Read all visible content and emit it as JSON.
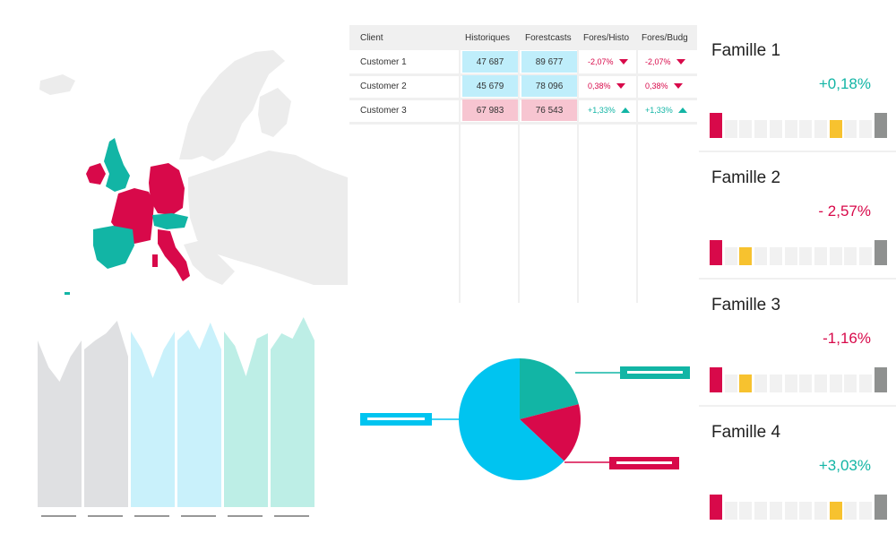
{
  "colors": {
    "red": "#d8094a",
    "teal": "#12b5a5",
    "cyan": "#00c4f0",
    "yellow": "#f7c22f",
    "grey_dark": "#8f9190",
    "grey_light": "#f1f1f1"
  },
  "table": {
    "headers": [
      "Client",
      "Historiques",
      "Forestcasts",
      "Fores/Histo",
      "Fores/Budg"
    ],
    "rows": [
      {
        "client": "Customer 1",
        "hist": "47 687",
        "fore": "89 677",
        "fh": "-2,07%",
        "fb": "-2,07%",
        "fh_dir": "down",
        "fb_dir": "down",
        "tone": "blue"
      },
      {
        "client": "Customer 2",
        "hist": "45 679",
        "fore": "78 096",
        "fh": "0,38%",
        "fb": "0,38%",
        "fh_dir": "down",
        "fb_dir": "down",
        "tone": "blue"
      },
      {
        "client": "Customer 3",
        "hist": "67 983",
        "fore": "76 543",
        "fh": "+1,33%",
        "fb": "+1,33%",
        "fh_dir": "up",
        "fb_dir": "up",
        "tone": "pink"
      }
    ]
  },
  "families": [
    {
      "title": "Famille 1",
      "value": "+0,18%",
      "trend": "pos",
      "highlight": 8
    },
    {
      "title": "Famille 2",
      "value": "- 2,57%",
      "trend": "neg",
      "highlight": 2
    },
    {
      "title": "Famille 3",
      "value": "-1,16%",
      "trend": "neg",
      "highlight": 2
    },
    {
      "title": "Famille 4",
      "value": "+3,03%",
      "trend": "pos",
      "highlight": 8
    }
  ],
  "map": {
    "highlighted_red": [
      "Ireland",
      "France",
      "Germany",
      "Italy"
    ],
    "highlighted_teal": [
      "United Kingdom",
      "Spain",
      "Portugal",
      "Switzerland",
      "Austria"
    ]
  },
  "pie": {
    "slices": [
      {
        "color": "teal",
        "fraction": 0.21
      },
      {
        "color": "red",
        "fraction": 0.16
      },
      {
        "color": "cyan",
        "fraction": 0.63
      }
    ]
  },
  "area_panels": [
    {
      "color": "#dfe0e2"
    },
    {
      "color": "#dfe0e2"
    },
    {
      "color": "#c9f1fb"
    },
    {
      "color": "#c9f1fb"
    },
    {
      "color": "#bdeee6"
    },
    {
      "color": "#bdeee6"
    }
  ]
}
